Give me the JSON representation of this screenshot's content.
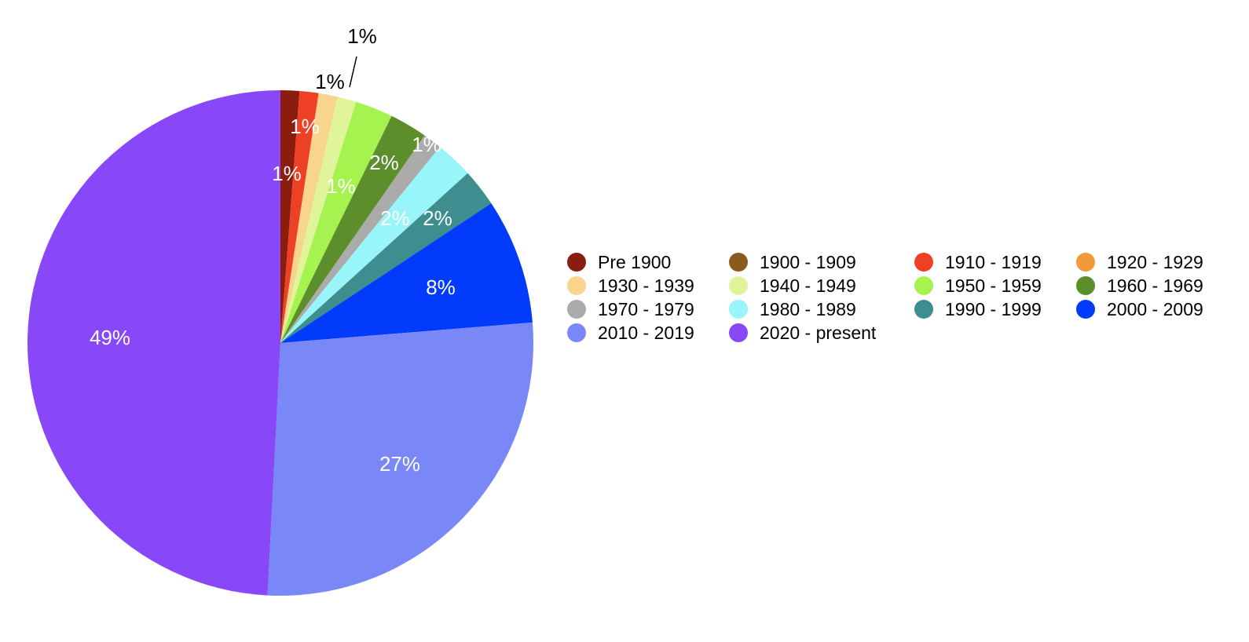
{
  "chart_data": {
    "type": "pie",
    "categories": [
      "Pre 1900",
      "1900 - 1909",
      "1910 - 1919",
      "1920 - 1929",
      "1930 - 1939",
      "1940 - 1949",
      "1950 - 1959",
      "1960 - 1969",
      "1970 - 1979",
      "1980 - 1989",
      "1990 - 1999",
      "2000 - 2009",
      "2010 - 2019",
      "2020 - present"
    ],
    "values": [
      1.2,
      0,
      1.2,
      0.02,
      1.2,
      1.2,
      2.4,
      2.4,
      1.2,
      2.4,
      2.4,
      8.0,
      27.0,
      49.0
    ],
    "value_labels": [
      "1%",
      "",
      "1%",
      "",
      "1%",
      "1%",
      "2%",
      "2%",
      "1%",
      "2%",
      "2%",
      "8%",
      "27%",
      "49%"
    ],
    "outside_labels": [
      "1%",
      "1%"
    ],
    "colors": [
      "#8B1C0E",
      "#8B5A1E",
      "#EE4024",
      "#F29A38",
      "#F9D48C",
      "#E0F59A",
      "#A6F24F",
      "#5C8F2B",
      "#ABABAB",
      "#98F6FB",
      "#3E8E8F",
      "#023BFB",
      "#7A87F7",
      "#8948F7"
    ],
    "legend_position": "right",
    "start_angle": "12 o'clock",
    "direction": "clockwise"
  }
}
